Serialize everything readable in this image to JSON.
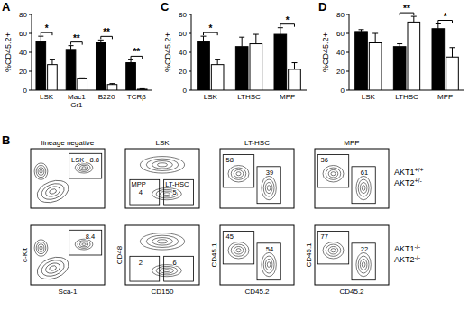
{
  "chart_data": [
    {
      "type": "bar",
      "title": "A",
      "y_label": "%CD45.2+",
      "categories": [
        "LSK",
        "Mac1\nGr1",
        "B220",
        "TCRβ"
      ],
      "series": [
        {
          "color": "#000000",
          "values": [
            51,
            43,
            50,
            29
          ],
          "errors": [
            6,
            4,
            3,
            3
          ]
        },
        {
          "color": "#ffffff",
          "values": [
            27,
            12,
            6,
            1
          ],
          "errors": [
            5,
            1,
            1,
            0.5
          ]
        }
      ],
      "annotations": [
        "*",
        "**",
        "**",
        "**"
      ],
      "ylim": [
        0,
        80
      ],
      "yticks": [
        0,
        20,
        40,
        60,
        80
      ]
    },
    {
      "type": "bar",
      "title": "C",
      "y_label": "%CD45.2+",
      "categories": [
        "LSK",
        "LTHSC",
        "MPP"
      ],
      "series": [
        {
          "color": "#000000",
          "values": [
            51,
            46,
            59
          ],
          "errors": [
            6,
            10,
            7
          ]
        },
        {
          "color": "#ffffff",
          "values": [
            27,
            49,
            22
          ],
          "errors": [
            5,
            10,
            7
          ]
        }
      ],
      "annotations": [
        "*",
        null,
        "*"
      ],
      "ylim": [
        0,
        80
      ],
      "yticks": [
        0,
        20,
        40,
        60,
        80
      ]
    },
    {
      "type": "bar",
      "title": "D",
      "y_label": "%CD45.2+",
      "categories": [
        "LSK",
        "LTHSC",
        "MPP"
      ],
      "series": [
        {
          "color": "#000000",
          "values": [
            62,
            46,
            65
          ],
          "errors": [
            2,
            3,
            5
          ]
        },
        {
          "color": "#ffffff",
          "values": [
            50,
            72,
            35
          ],
          "errors": [
            10,
            6,
            10
          ]
        }
      ],
      "annotations": [
        null,
        "**",
        "*"
      ],
      "ylim": [
        0,
        80
      ],
      "yticks": [
        0,
        20,
        40,
        60,
        80
      ]
    }
  ],
  "panel_b": {
    "title": "B",
    "columns": [
      "lineage negative",
      "LSK",
      "LT-HSC",
      "MPP"
    ],
    "x_labels": [
      "Sca-1",
      "CD150",
      "CD45.2",
      "CD45.2"
    ],
    "y_labels": [
      "c-Kit",
      "CD48",
      "CD45.1",
      "CD45.1"
    ],
    "rows": [
      {
        "label": [
          "AKT1+/+",
          "AKT2+/-"
        ],
        "plots": [
          [
            {
              "label": "LSK",
              "value": 8.8
            }
          ],
          [
            {
              "label": "MPP",
              "value": 4
            },
            {
              "label": "LT-HSC",
              "value": 5
            }
          ],
          [
            {
              "value": 58
            },
            {
              "value": 39
            }
          ],
          [
            {
              "value": 36
            },
            {
              "value": 61
            }
          ]
        ]
      },
      {
        "label": [
          "AKT1-/-",
          "AKT2-/-"
        ],
        "plots": [
          [
            {
              "value": 8.4
            }
          ],
          [
            {
              "value": 2
            },
            {
              "value": 6
            }
          ],
          [
            {
              "value": 45
            },
            {
              "value": 54
            }
          ],
          [
            {
              "value": 77
            },
            {
              "value": 22
            }
          ]
        ]
      }
    ]
  }
}
